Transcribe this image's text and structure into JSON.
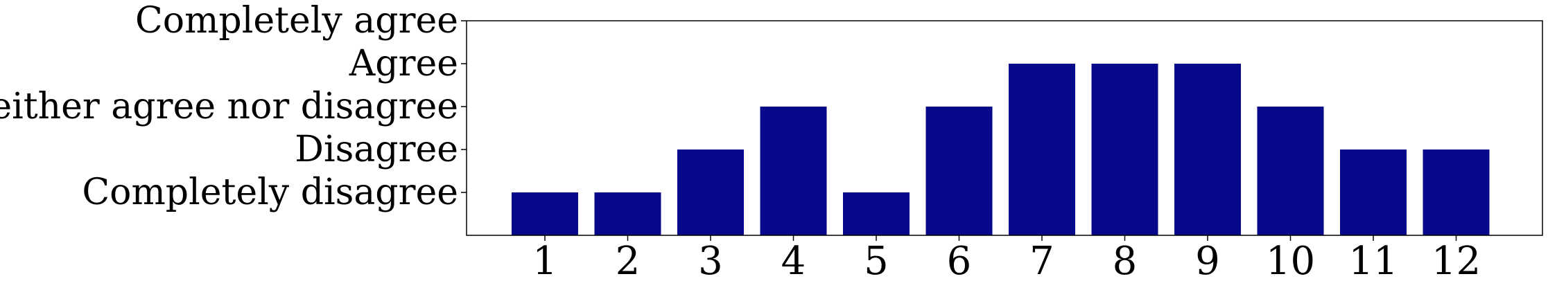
{
  "chart_data": {
    "type": "bar",
    "categories": [
      "1",
      "2",
      "3",
      "4",
      "5",
      "6",
      "7",
      "8",
      "9",
      "10",
      "11",
      "12"
    ],
    "values": [
      1,
      1,
      2,
      3,
      1,
      3,
      4,
      4,
      4,
      3,
      2,
      2
    ],
    "y_ticks": [
      {
        "value": 1,
        "label": "Completely disagree"
      },
      {
        "value": 2,
        "label": "Disagree"
      },
      {
        "value": 3,
        "label": "Neither agree nor disagree"
      },
      {
        "value": 4,
        "label": "Agree"
      },
      {
        "value": 5,
        "label": "Completely agree"
      }
    ],
    "ylim": [
      0,
      5
    ],
    "title": "",
    "xlabel": "",
    "ylabel": "",
    "grid": false,
    "legend": "none",
    "bar_color": "#08088a"
  }
}
